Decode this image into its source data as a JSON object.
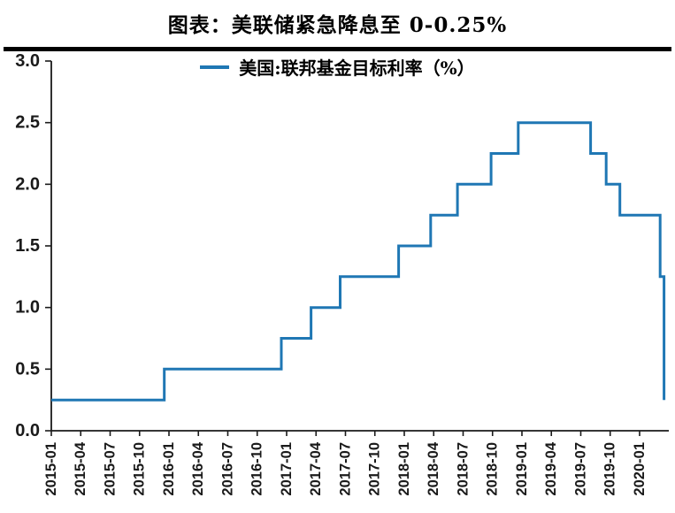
{
  "header": {
    "title": "图表：美联储紧急降息至 0-0.25%"
  },
  "legend": {
    "label": "美国:联邦基金目标利率（%）"
  },
  "colors": {
    "line": "#1f77b4",
    "axis": "#1a1a1a",
    "label_text": "#1a1a1a",
    "title_text": "#000000",
    "title_rule": "#000000",
    "background": "#ffffff"
  },
  "chart_data": {
    "type": "line",
    "subtype": "step",
    "title": "图表：美联储紧急降息至 0-0.25%",
    "legend_position": "top-center",
    "grid": false,
    "xlabel": "",
    "ylabel": "",
    "ylim": [
      0.0,
      3.0
    ],
    "y_ticks": [
      0,
      0.5,
      1,
      1.5,
      2,
      2.5,
      3
    ],
    "y_tick_labels": [
      "0.0",
      "0.5",
      "1.0",
      "1.5",
      "2.0",
      "2.5",
      "3.0"
    ],
    "x_tick_labels": [
      "2015-01",
      "2015-04",
      "2015-07",
      "2015-10",
      "2016-01",
      "2016-04",
      "2016-07",
      "2016-10",
      "2017-01",
      "2017-04",
      "2017-07",
      "2017-10",
      "2018-01",
      "2018-04",
      "2018-07",
      "2018-10",
      "2019-01",
      "2019-04",
      "2019-07",
      "2019-10",
      "2020-01"
    ],
    "x_tick_step_months": 3,
    "series": [
      {
        "name": "美国:联邦基金目标利率（%）",
        "color": "#1f77b4",
        "points": [
          {
            "date": "2015-01-01",
            "value": 0.25
          },
          {
            "date": "2015-12-17",
            "value": 0.5
          },
          {
            "date": "2016-12-15",
            "value": 0.75
          },
          {
            "date": "2017-03-16",
            "value": 1.0
          },
          {
            "date": "2017-06-15",
            "value": 1.25
          },
          {
            "date": "2017-12-14",
            "value": 1.5
          },
          {
            "date": "2018-03-22",
            "value": 1.75
          },
          {
            "date": "2018-06-14",
            "value": 2.0
          },
          {
            "date": "2018-09-27",
            "value": 2.25
          },
          {
            "date": "2018-12-20",
            "value": 2.5
          },
          {
            "date": "2019-08-01",
            "value": 2.25
          },
          {
            "date": "2019-09-19",
            "value": 2.0
          },
          {
            "date": "2019-10-31",
            "value": 1.75
          },
          {
            "date": "2020-03-04",
            "value": 1.25
          },
          {
            "date": "2020-03-16",
            "value": 0.25
          }
        ]
      }
    ]
  }
}
